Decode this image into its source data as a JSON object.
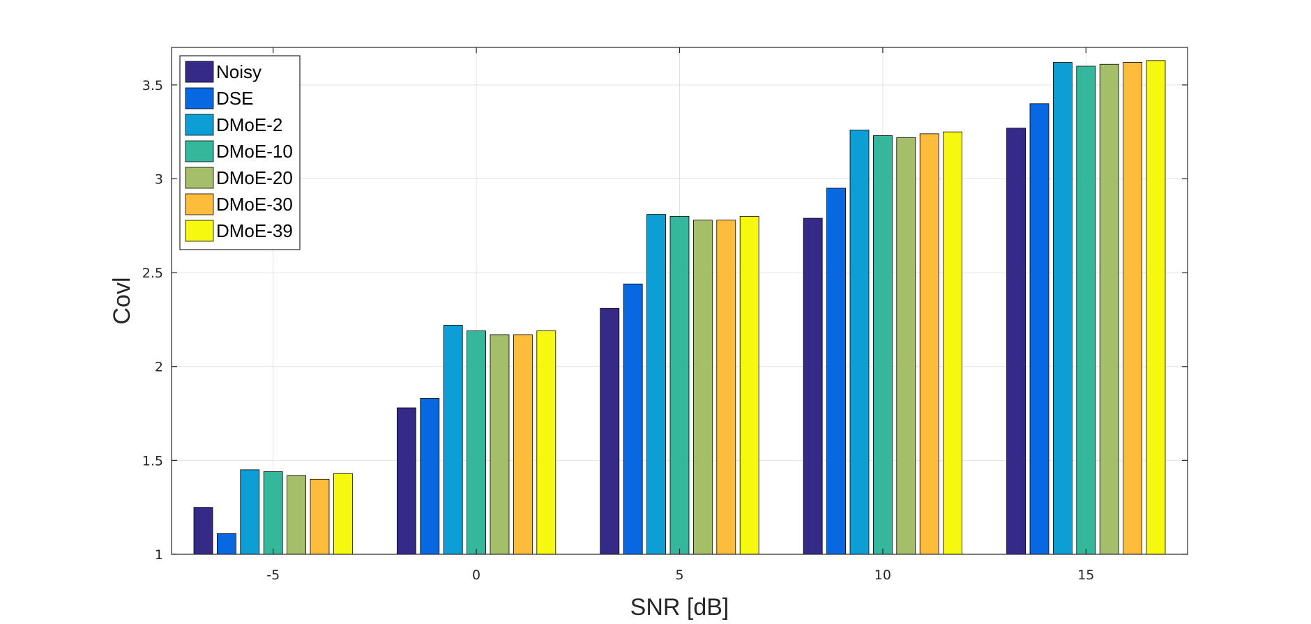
{
  "chart_data": {
    "type": "bar",
    "title": "",
    "xlabel": "SNR [dB]",
    "ylabel": "Covl",
    "categories": [
      "-5",
      "0",
      "5",
      "10",
      "15"
    ],
    "ylim": [
      1,
      3.7
    ],
    "yticks": [
      1,
      1.5,
      2,
      2.5,
      3,
      3.5
    ],
    "ytick_labels": [
      "1",
      "1.5",
      "2",
      "2.5",
      "3",
      "3.5"
    ],
    "grid": true,
    "legend_position": "top-left",
    "series": [
      {
        "name": "Noisy",
        "color": "#352a87",
        "values": [
          1.25,
          1.78,
          2.31,
          2.79,
          3.27
        ]
      },
      {
        "name": "DSE",
        "color": "#0868e1",
        "values": [
          1.11,
          1.83,
          2.44,
          2.95,
          3.4
        ]
      },
      {
        "name": "DMoE-2",
        "color": "#0d9ed6",
        "values": [
          1.45,
          2.22,
          2.81,
          3.26,
          3.62
        ]
      },
      {
        "name": "DMoE-10",
        "color": "#35b79c",
        "values": [
          1.44,
          2.19,
          2.8,
          3.23,
          3.6
        ]
      },
      {
        "name": "DMoE-20",
        "color": "#a5be6a",
        "values": [
          1.42,
          2.17,
          2.78,
          3.22,
          3.61
        ]
      },
      {
        "name": "DMoE-30",
        "color": "#fdbc3c",
        "values": [
          1.4,
          2.17,
          2.78,
          3.24,
          3.62
        ]
      },
      {
        "name": "DMoE-39",
        "color": "#f6f80f",
        "values": [
          1.43,
          2.19,
          2.8,
          3.25,
          3.63
        ]
      }
    ]
  }
}
